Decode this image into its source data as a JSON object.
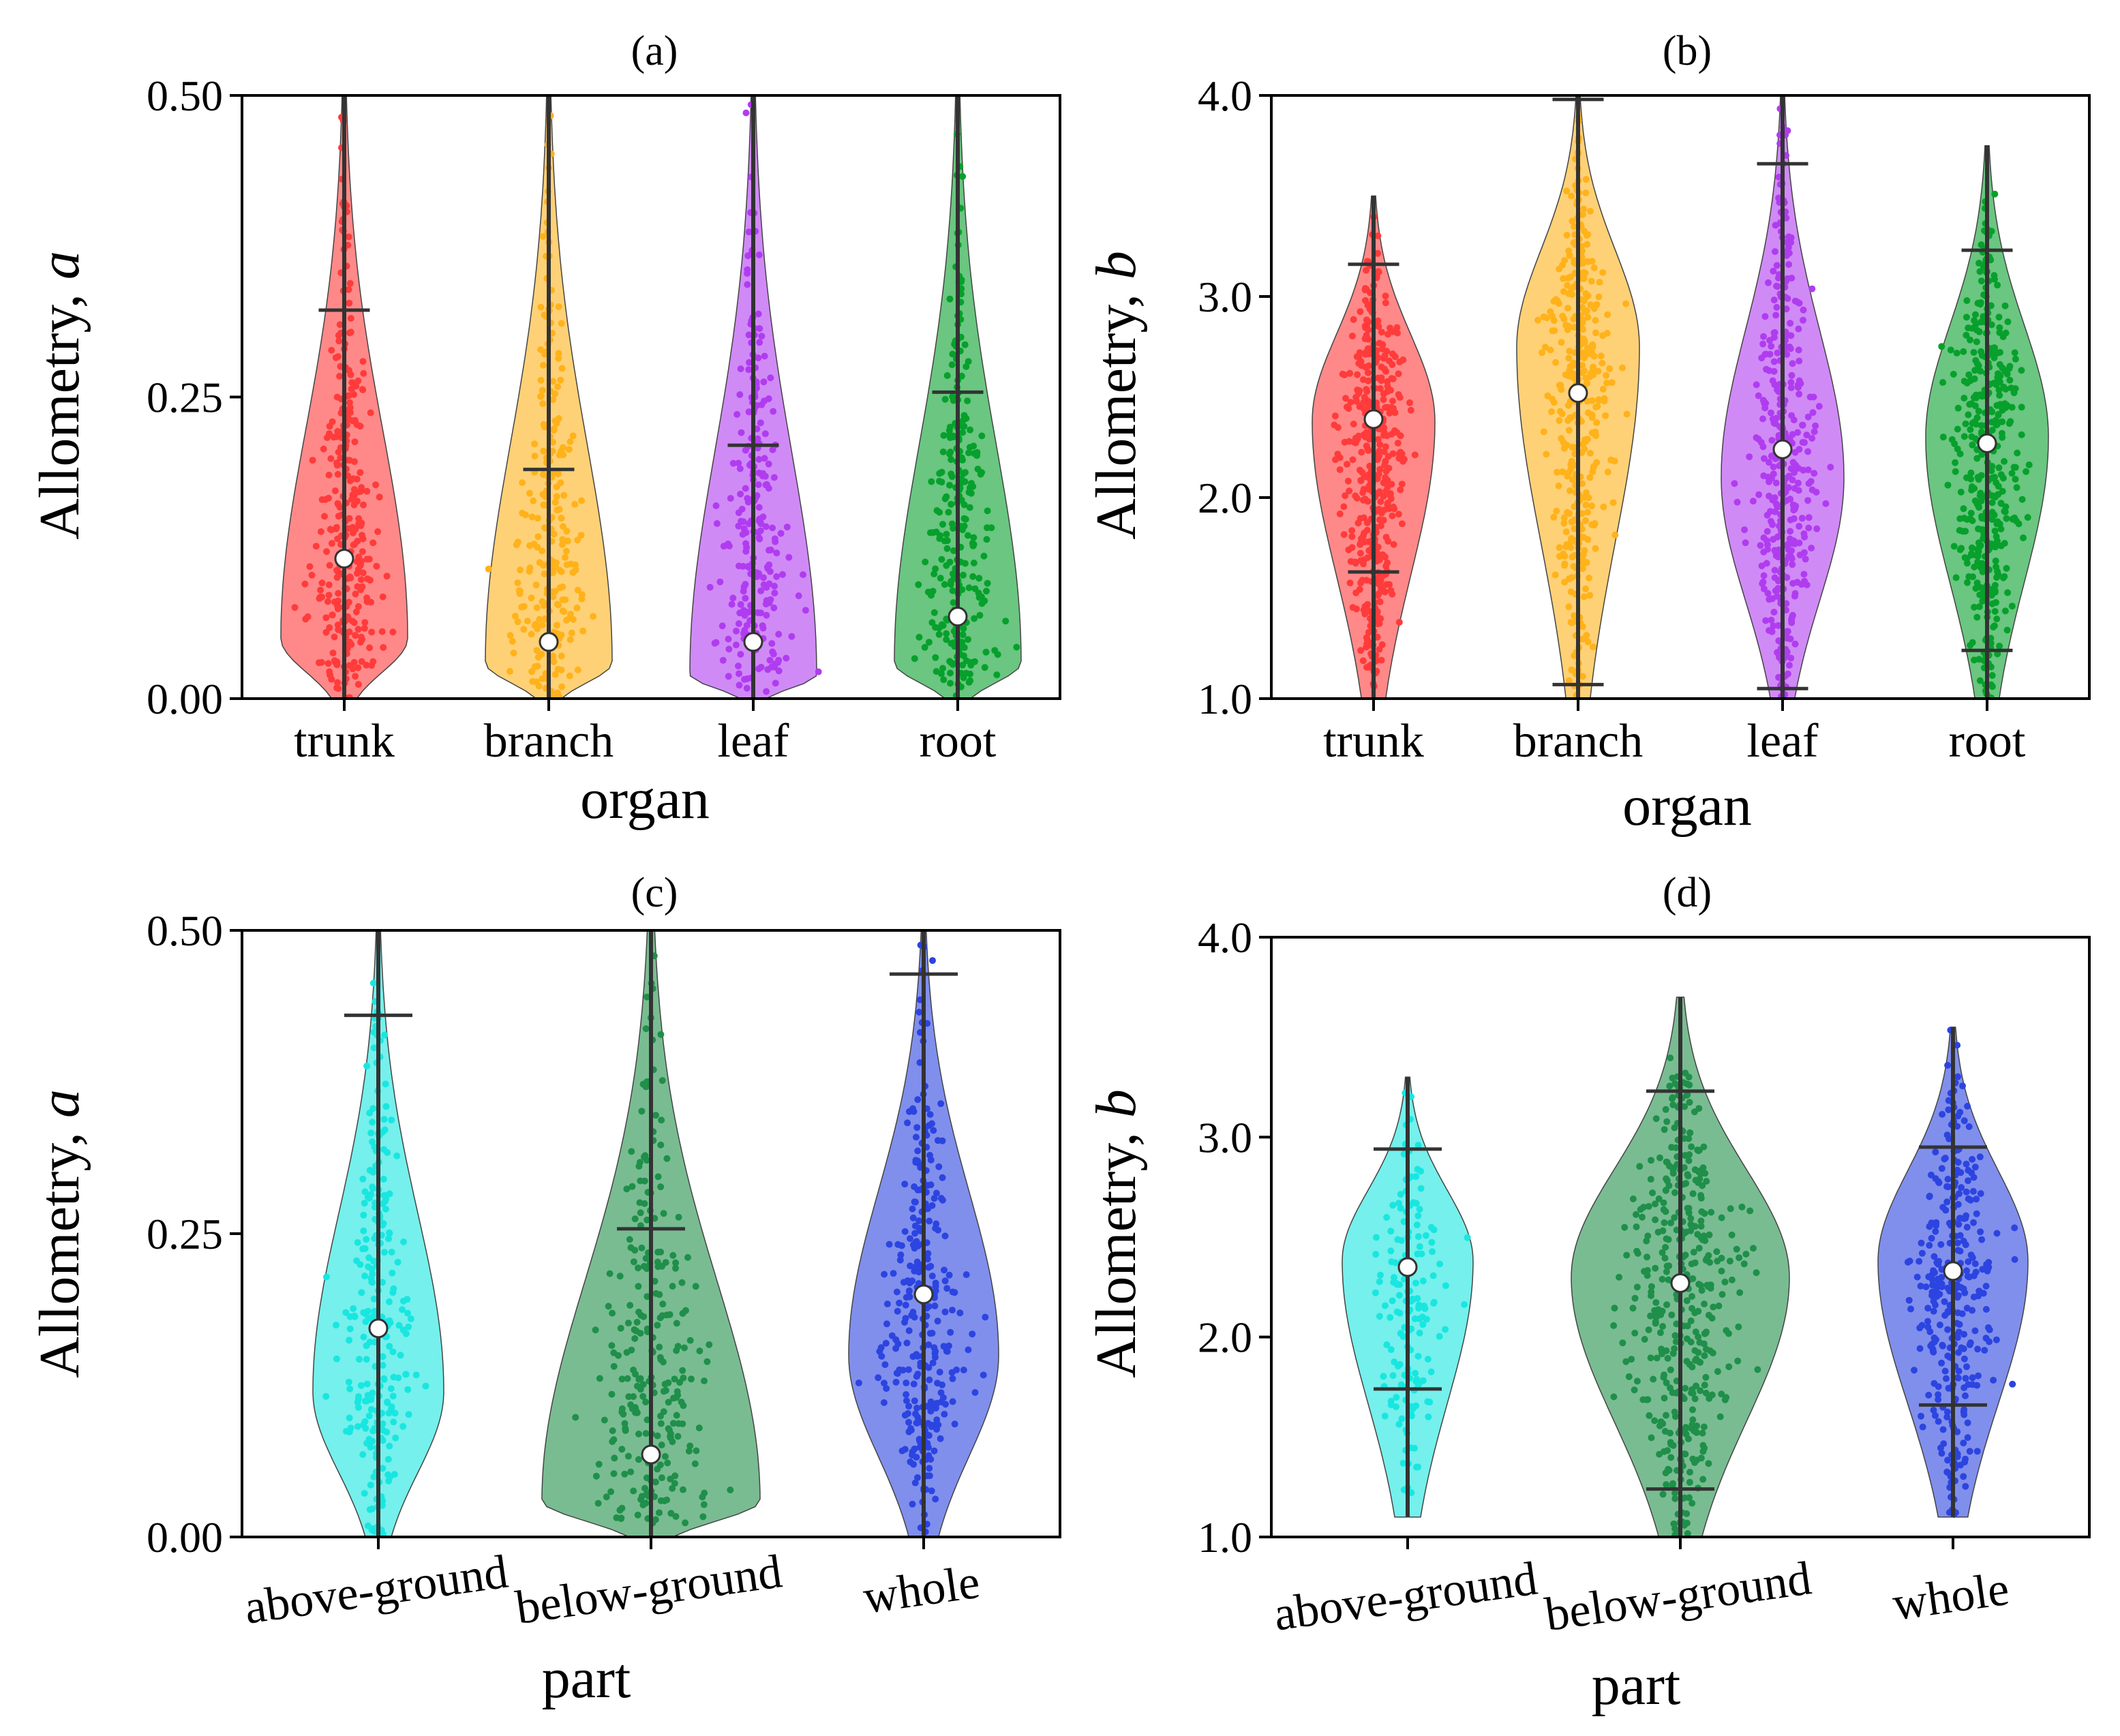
{
  "chart_data": [
    {
      "panel": "(a)",
      "type": "violin",
      "title": "(a)",
      "xlabel": "organ",
      "ylabel": "Allometry, ",
      "ylabel_italic": "a",
      "ylim": [
        0,
        0.5
      ],
      "yticks": [
        0.0,
        0.25,
        0.5
      ],
      "ytick_labels": [
        "0.00",
        "0.25",
        "0.50"
      ],
      "categories": [
        "trunk",
        "branch",
        "leaf",
        "root"
      ],
      "colors": [
        "#ff3b3b",
        "#ffb21a",
        "#b03cf0",
        "#07a02c"
      ],
      "series": [
        {
          "name": "trunk",
          "median": 0.116,
          "whisker_low": 0.0,
          "whisker_high": 0.322,
          "min": 0.0,
          "max": 0.5,
          "mode": 0.05,
          "width": 0.62,
          "n": 300
        },
        {
          "name": "branch",
          "median": 0.047,
          "whisker_low": 0.0,
          "whisker_high": 0.19,
          "min": 0.0,
          "max": 0.5,
          "mode": 0.03,
          "width": 0.62,
          "n": 240
        },
        {
          "name": "leaf",
          "median": 0.047,
          "whisker_low": 0.0,
          "whisker_high": 0.21,
          "min": 0.0,
          "max": 0.5,
          "mode": 0.02,
          "width": 0.62,
          "n": 240
        },
        {
          "name": "root",
          "median": 0.068,
          "whisker_low": 0.0,
          "whisker_high": 0.254,
          "min": 0.0,
          "max": 0.5,
          "mode": 0.03,
          "width": 0.62,
          "n": 260
        }
      ]
    },
    {
      "panel": "(b)",
      "type": "violin",
      "title": "(b)",
      "xlabel": "organ",
      "ylabel": "Allometry, ",
      "ylabel_italic": "b",
      "ylim": [
        1.0,
        4.0
      ],
      "yticks": [
        1.0,
        2.0,
        3.0,
        4.0
      ],
      "ytick_labels": [
        "1.0",
        "2.0",
        "3.0",
        "4.0"
      ],
      "categories": [
        "trunk",
        "branch",
        "leaf",
        "root"
      ],
      "colors": [
        "#ff3b3b",
        "#ffb21a",
        "#b03cf0",
        "#07a02c"
      ],
      "series": [
        {
          "name": "trunk",
          "median": 2.39,
          "whisker_low": 1.63,
          "whisker_high": 3.16,
          "min": 1.0,
          "max": 3.5,
          "mode": 2.38,
          "width": 0.6,
          "n": 420
        },
        {
          "name": "branch",
          "median": 2.52,
          "whisker_low": 1.07,
          "whisker_high": 3.98,
          "min": 1.0,
          "max": 4.0,
          "mode": 2.75,
          "width": 0.6,
          "n": 380
        },
        {
          "name": "leaf",
          "median": 2.24,
          "whisker_low": 1.05,
          "whisker_high": 3.66,
          "min": 1.0,
          "max": 4.0,
          "mode": 2.1,
          "width": 0.6,
          "n": 380
        },
        {
          "name": "root",
          "median": 2.27,
          "whisker_low": 1.24,
          "whisker_high": 3.23,
          "min": 1.0,
          "max": 3.75,
          "mode": 2.3,
          "width": 0.6,
          "n": 400
        }
      ]
    },
    {
      "panel": "(c)",
      "type": "violin",
      "title": "(c)",
      "xlabel": "part",
      "ylabel": "Allometry, ",
      "ylabel_italic": "a",
      "ylim": [
        0,
        0.5
      ],
      "yticks": [
        0.0,
        0.25,
        0.5
      ],
      "ytick_labels": [
        "0.00",
        "0.25",
        "0.50"
      ],
      "categories": [
        "above-ground",
        "below-ground",
        "whole"
      ],
      "colors": [
        "#19e6e0",
        "#1f8f4a",
        "#2c44e0"
      ],
      "series": [
        {
          "name": "above-ground",
          "median": 0.172,
          "whisker_low": 0.0,
          "whisker_high": 0.43,
          "min": 0.0,
          "max": 0.5,
          "mode": 0.12,
          "width": 0.48,
          "n": 260
        },
        {
          "name": "below-ground",
          "median": 0.068,
          "whisker_low": 0.0,
          "whisker_high": 0.254,
          "min": 0.0,
          "max": 0.5,
          "mode": 0.03,
          "width": 0.8,
          "n": 260
        },
        {
          "name": "whole",
          "median": 0.2,
          "whisker_low": 0.0,
          "whisker_high": 0.464,
          "min": 0.0,
          "max": 0.5,
          "mode": 0.15,
          "width": 0.55,
          "n": 300
        }
      ]
    },
    {
      "panel": "(d)",
      "type": "violin",
      "title": "(d)",
      "xlabel": "part",
      "ylabel": "Allometry, ",
      "ylabel_italic": "b",
      "ylim": [
        1.0,
        4.0
      ],
      "yticks": [
        1.0,
        2.0,
        3.0,
        4.0
      ],
      "ytick_labels": [
        "1.0",
        "2.0",
        "3.0",
        "4.0"
      ],
      "categories": [
        "above-ground",
        "below-ground",
        "whole"
      ],
      "colors": [
        "#19e6e0",
        "#1f8f4a",
        "#2c44e0"
      ],
      "series": [
        {
          "name": "above-ground",
          "median": 2.35,
          "whisker_low": 1.74,
          "whisker_high": 2.94,
          "min": 1.1,
          "max": 3.3,
          "mode": 2.38,
          "width": 0.48,
          "n": 160
        },
        {
          "name": "below-ground",
          "median": 2.27,
          "whisker_low": 1.24,
          "whisker_high": 3.23,
          "min": 1.0,
          "max": 3.7,
          "mode": 2.3,
          "width": 0.8,
          "n": 420
        },
        {
          "name": "whole",
          "median": 2.33,
          "whisker_low": 1.66,
          "whisker_high": 2.95,
          "min": 1.1,
          "max": 3.55,
          "mode": 2.38,
          "width": 0.55,
          "n": 320
        }
      ]
    }
  ]
}
